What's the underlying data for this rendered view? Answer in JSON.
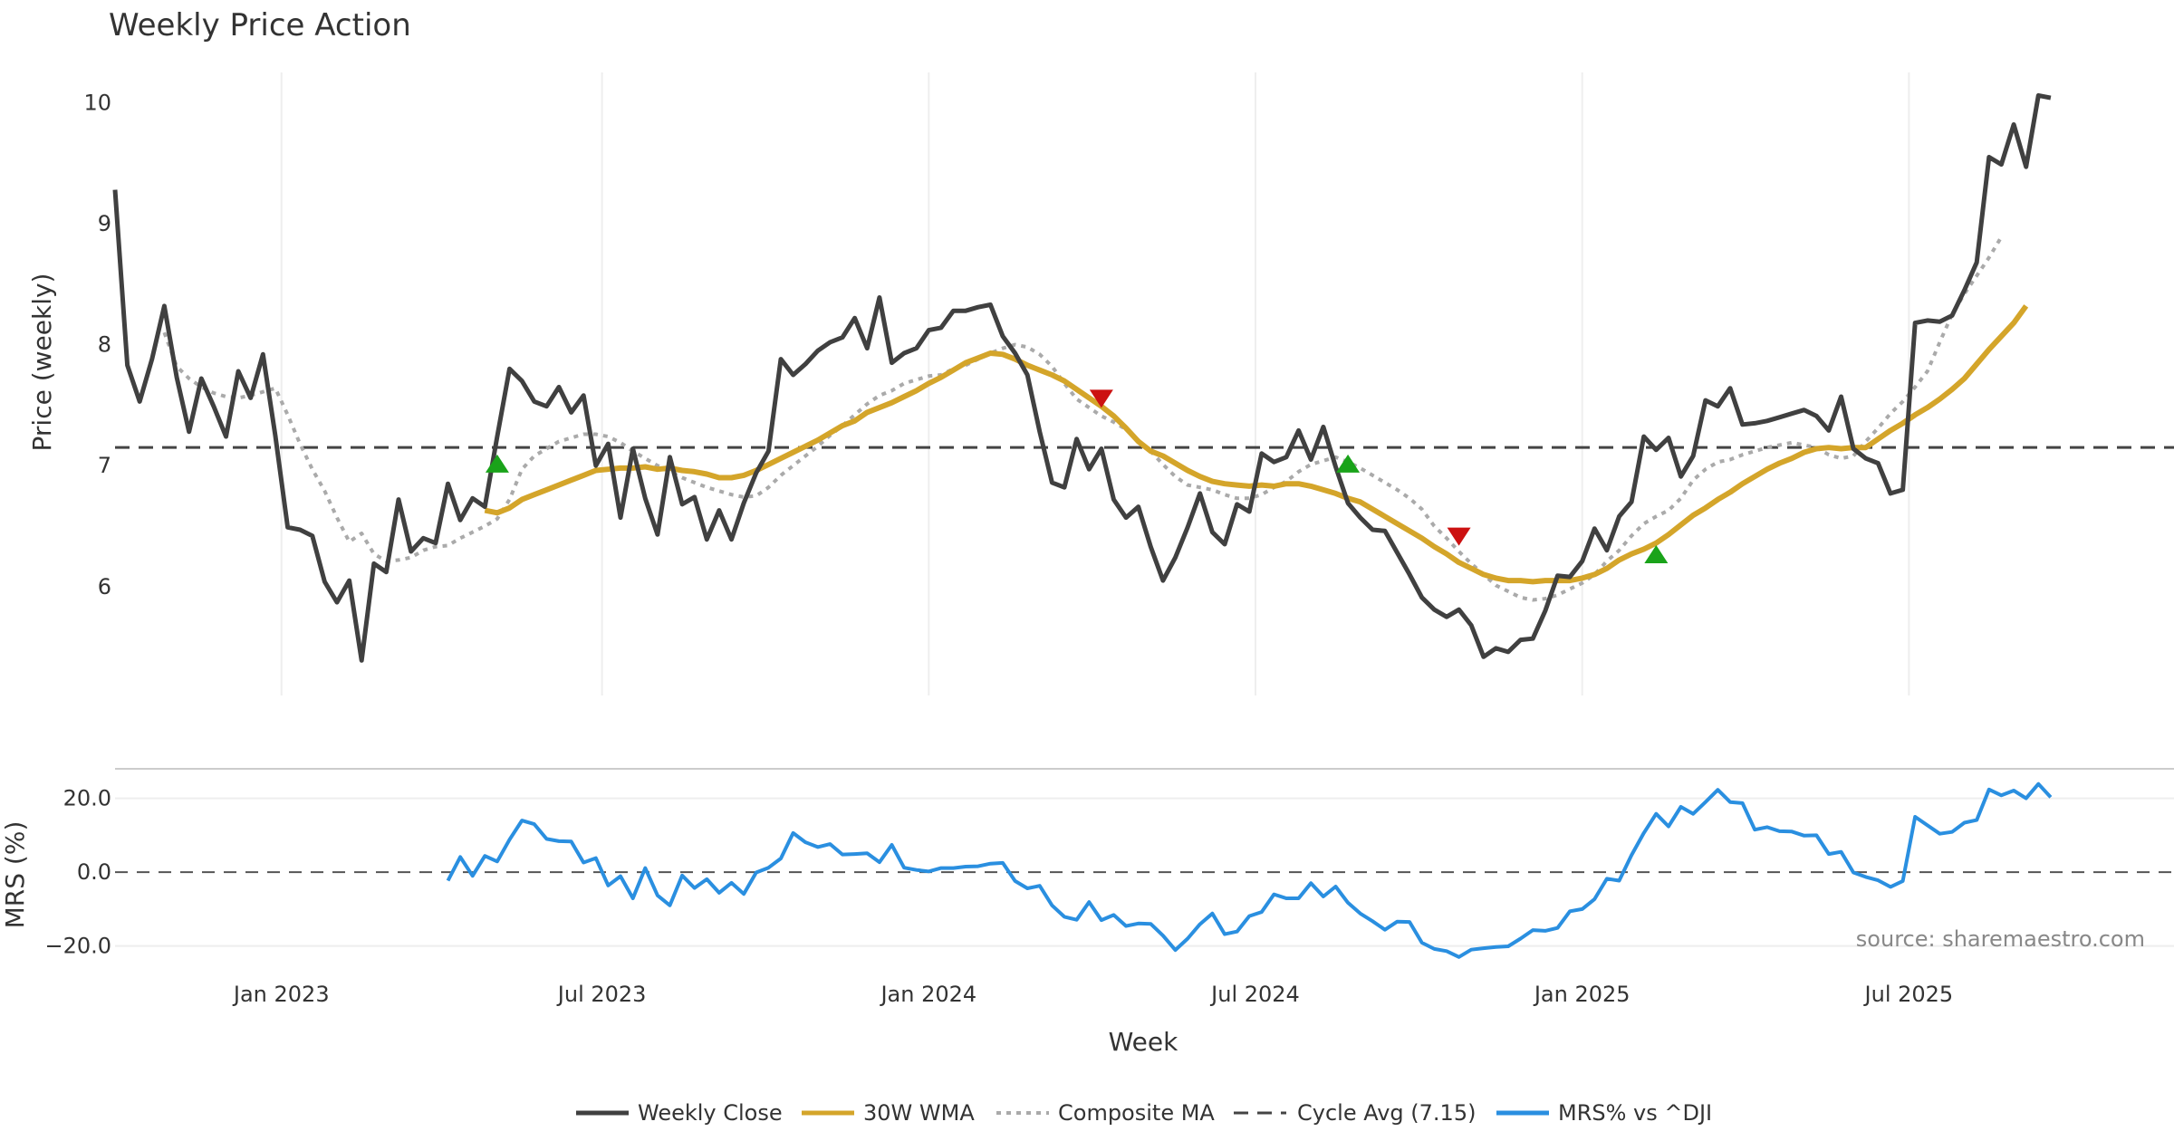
{
  "chart_data": {
    "type": "line",
    "title": "Weekly Price Action",
    "xlabel": "Week",
    "x_ticks": [
      "Jan 2023",
      "Jul 2023",
      "Jan 2024",
      "Jul 2024",
      "Jan 2025",
      "Jul 2025"
    ],
    "colors": {
      "close": "#404040",
      "wma": "#d4a52a",
      "composite": "#aaaaaa",
      "cycle": "#444444",
      "mrs": "#2a8fe0",
      "buy": "#1aa31a",
      "sell": "#cc1111",
      "grid": "#eeeeee"
    },
    "price_panel": {
      "ylabel": "Price (weekly)",
      "ylim": [
        5.1,
        10.4
      ],
      "yticks": [
        6,
        7,
        8,
        9,
        10
      ],
      "cycle_avg": 7.15,
      "week_range": [
        0,
        167
      ],
      "series": [
        {
          "name": "Weekly Close",
          "start": 0,
          "values": [
            9.28,
            7.83,
            7.53,
            7.88,
            8.32,
            7.73,
            7.28,
            7.72,
            7.49,
            7.24,
            7.78,
            7.56,
            7.92,
            7.25,
            6.49,
            6.47,
            6.42,
            6.04,
            5.87,
            6.05,
            5.39,
            6.19,
            6.12,
            6.72,
            6.29,
            6.4,
            6.36,
            6.85,
            6.55,
            6.73,
            6.66,
            7.24,
            7.8,
            7.7,
            7.53,
            7.49,
            7.65,
            7.44,
            7.58,
            7.0,
            7.18,
            6.57,
            7.14,
            6.73,
            6.43,
            7.07,
            6.68,
            6.74,
            6.39,
            6.63,
            6.39,
            6.69,
            6.94,
            7.12,
            7.88,
            7.75,
            7.84,
            7.95,
            8.02,
            8.06,
            8.22,
            7.97,
            8.39,
            7.85,
            7.93,
            7.97,
            8.12,
            8.14,
            8.28,
            8.28,
            8.31,
            8.33,
            8.07,
            7.93,
            7.75,
            7.28,
            6.86,
            6.82,
            7.22,
            6.97,
            7.14,
            6.72,
            6.57,
            6.66,
            6.33,
            6.05,
            6.24,
            6.49,
            6.77,
            6.45,
            6.35,
            6.68,
            6.62,
            7.1,
            7.03,
            7.07,
            7.29,
            7.05,
            7.32,
            6.99,
            6.69,
            6.57,
            6.47,
            6.46,
            6.28,
            6.1,
            5.91,
            5.81,
            5.75,
            5.81,
            5.68,
            5.42,
            5.49,
            5.46,
            5.56,
            5.57,
            5.8,
            6.09,
            6.08,
            6.21,
            6.48,
            6.3,
            6.58,
            6.7,
            7.24,
            7.13,
            7.23,
            6.91,
            7.08,
            7.54,
            7.49,
            7.64,
            7.34,
            7.35,
            7.37,
            7.4,
            7.43,
            7.46,
            7.41,
            7.29,
            7.57,
            7.14,
            7.06,
            7.02,
            6.77,
            6.8,
            8.18,
            8.2,
            8.19,
            8.24,
            8.45,
            8.68,
            9.55,
            9.49,
            9.82,
            9.47,
            10.06,
            10.04
          ]
        },
        {
          "name": "30W WMA",
          "start": 30,
          "values": [
            6.63,
            6.61,
            6.65,
            6.72,
            6.76,
            6.8,
            6.84,
            6.88,
            6.92,
            6.96,
            6.97,
            6.98,
            6.98,
            6.99,
            6.97,
            6.98,
            6.96,
            6.95,
            6.93,
            6.9,
            6.9,
            6.92,
            6.96,
            7.01,
            7.06,
            7.11,
            7.16,
            7.21,
            7.27,
            7.33,
            7.37,
            7.44,
            7.48,
            7.52,
            7.57,
            7.62,
            7.68,
            7.73,
            7.79,
            7.85,
            7.89,
            7.93,
            7.92,
            7.88,
            7.83,
            7.79,
            7.75,
            7.7,
            7.63,
            7.56,
            7.49,
            7.41,
            7.31,
            7.2,
            7.12,
            7.08,
            7.02,
            6.96,
            6.91,
            6.87,
            6.85,
            6.84,
            6.83,
            6.84,
            6.83,
            6.85,
            6.85,
            6.83,
            6.8,
            6.77,
            6.73,
            6.7,
            6.64,
            6.58,
            6.52,
            6.46,
            6.4,
            6.33,
            6.27,
            6.2,
            6.15,
            6.1,
            6.07,
            6.05,
            6.05,
            6.04,
            6.05,
            6.05,
            6.05,
            6.07,
            6.1,
            6.15,
            6.22,
            6.27,
            6.31,
            6.36,
            6.43,
            6.51,
            6.59,
            6.65,
            6.72,
            6.78,
            6.85,
            6.91,
            6.97,
            7.02,
            7.06,
            7.11,
            7.14,
            7.15,
            7.14,
            7.15,
            7.15,
            7.22,
            7.29,
            7.35,
            7.42,
            7.48,
            7.55,
            7.63,
            7.72,
            7.84,
            7.96,
            8.07,
            8.18,
            8.32
          ]
        },
        {
          "name": "Composite MA",
          "start": 4,
          "values": [
            8.1,
            7.82,
            7.72,
            7.65,
            7.6,
            7.57,
            7.56,
            7.58,
            7.61,
            7.64,
            7.42,
            7.18,
            6.97,
            6.79,
            6.57,
            6.37,
            6.44,
            6.27,
            6.21,
            6.22,
            6.24,
            6.3,
            6.33,
            6.34,
            6.4,
            6.45,
            6.5,
            6.56,
            6.72,
            6.97,
            7.08,
            7.14,
            7.2,
            7.23,
            7.26,
            7.26,
            7.24,
            7.19,
            7.12,
            7.06,
            7.0,
            6.95,
            6.9,
            6.86,
            6.82,
            6.79,
            6.76,
            6.74,
            6.75,
            6.82,
            6.92,
            7.0,
            7.08,
            7.16,
            7.25,
            7.33,
            7.42,
            7.51,
            7.58,
            7.62,
            7.68,
            7.71,
            7.74,
            7.75,
            7.8,
            7.83,
            7.88,
            7.93,
            7.97,
            8.0,
            7.98,
            7.92,
            7.82,
            7.68,
            7.55,
            7.48,
            7.41,
            7.36,
            7.3,
            7.21,
            7.12,
            7.01,
            6.91,
            6.84,
            6.82,
            6.8,
            6.76,
            6.73,
            6.73,
            6.76,
            6.82,
            6.87,
            6.95,
            7.01,
            7.04,
            7.07,
            7.03,
            6.98,
            6.92,
            6.86,
            6.8,
            6.73,
            6.64,
            6.5,
            6.4,
            6.29,
            6.19,
            6.1,
            6.01,
            5.96,
            5.91,
            5.89,
            5.9,
            5.93,
            5.98,
            6.03,
            6.1,
            6.21,
            6.3,
            6.42,
            6.52,
            6.58,
            6.63,
            6.73,
            6.88,
            6.97,
            7.03,
            7.05,
            7.09,
            7.12,
            7.15,
            7.17,
            7.19,
            7.17,
            7.15,
            7.09,
            7.06,
            7.08,
            7.2,
            7.31,
            7.43,
            7.53,
            7.65,
            7.78,
            8.02,
            8.25,
            8.42,
            8.57,
            8.72,
            8.89
          ]
        }
      ],
      "buy_signals": [
        {
          "week": 31,
          "value": 7.01
        },
        {
          "week": 100,
          "value": 7.01
        },
        {
          "week": 125,
          "value": 6.26
        }
      ],
      "sell_signals": [
        {
          "week": 80,
          "value": 7.56
        },
        {
          "week": 109,
          "value": 6.42
        }
      ]
    },
    "mrs_panel": {
      "ylabel": "MRS (%)",
      "ylim": [
        -25,
        28
      ],
      "yticks": [
        20.0,
        0.0,
        -20.0
      ],
      "ytick_labels": [
        "20.0",
        "0.0",
        "−20.0"
      ],
      "zero_line": 0,
      "series": {
        "name": "MRS% vs ^DJI",
        "start": 27,
        "values": [
          -2.3,
          4.1,
          -1.0,
          4.4,
          2.9,
          8.8,
          14.0,
          13.0,
          9.0,
          8.4,
          8.3,
          2.6,
          3.8,
          -3.6,
          -1.1,
          -7.1,
          1.1,
          -6.3,
          -9.0,
          -0.9,
          -4.3,
          -1.9,
          -5.6,
          -2.9,
          -5.9,
          -0.1,
          1.2,
          3.7,
          10.6,
          8.1,
          6.8,
          7.6,
          4.8,
          4.9,
          5.1,
          2.7,
          7.4,
          1.2,
          0.6,
          0.2,
          1.1,
          1.1,
          1.5,
          1.6,
          2.3,
          2.5,
          -2.4,
          -4.4,
          -3.7,
          -9.0,
          -12.1,
          -12.9,
          -8.1,
          -13.0,
          -11.6,
          -14.6,
          -13.9,
          -14.0,
          -17.2,
          -21.1,
          -18.0,
          -14.1,
          -11.2,
          -16.8,
          -16.1,
          -11.9,
          -10.8,
          -6.0,
          -7.1,
          -7.1,
          -3.0,
          -6.6,
          -3.9,
          -8.3,
          -11.2,
          -13.3,
          -15.6,
          -13.4,
          -13.5,
          -19.1,
          -20.8,
          -21.4,
          -23.0,
          -21.0,
          -20.6,
          -20.3,
          -20.1,
          -18.0,
          -15.7,
          -15.9,
          -15.1,
          -10.6,
          -10.0,
          -7.3,
          -1.8,
          -2.3,
          4.6,
          10.6,
          15.8,
          12.4,
          17.7,
          15.8,
          19.0,
          22.3,
          19.0,
          18.7,
          11.5,
          12.2,
          11.1,
          11.0,
          9.9,
          10.0,
          4.9,
          5.5,
          -0.1,
          -1.3,
          -2.2,
          -4.0,
          -2.4,
          15.0,
          12.7,
          10.4,
          10.9,
          13.4,
          14.1,
          22.4,
          20.8,
          22.1,
          20.0,
          23.9,
          20.3
        ]
      }
    },
    "legend": [
      "Weekly Close",
      "30W WMA",
      "Composite MA",
      "Cycle Avg (7.15)",
      "MRS% vs ^DJI"
    ],
    "source": "source: sharemaestro.com"
  }
}
